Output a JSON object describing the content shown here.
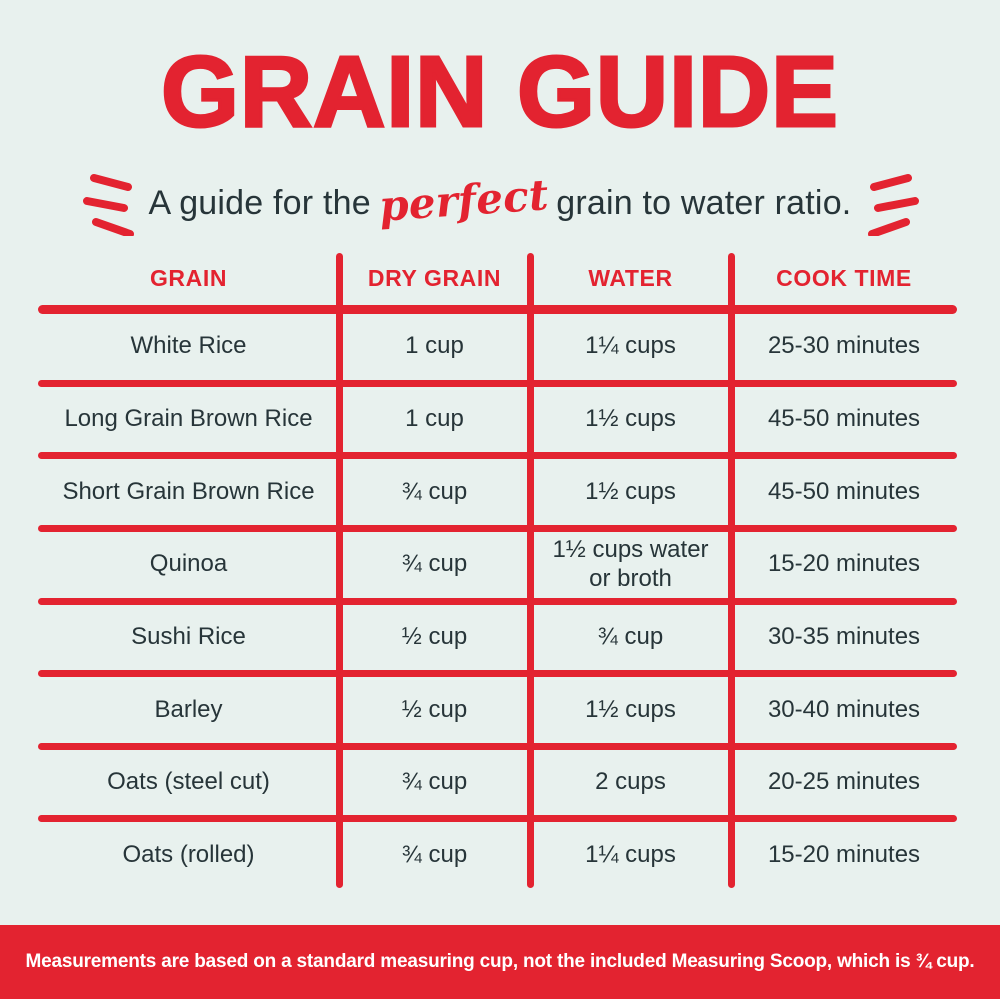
{
  "colors": {
    "background": "#E8F1EE",
    "accent_red": "#E32330",
    "dark_text": "#273539",
    "footer_background": "#E32330",
    "footer_text": "#FFFFFF"
  },
  "header": {
    "title": "GRAIN GUIDE",
    "subtitle_prefix": "A guide for the",
    "subtitle_accent": "perfect",
    "subtitle_suffix": "grain to water ratio."
  },
  "table": {
    "columns": [
      "GRAIN",
      "DRY GRAIN",
      "WATER",
      "COOK TIME"
    ],
    "rows": [
      {
        "grain": "White Rice",
        "dry_grain": "1 cup",
        "water": "1¼ cups",
        "cook_time": "25-30 minutes"
      },
      {
        "grain": "Long Grain Brown Rice",
        "dry_grain": "1 cup",
        "water": "1½ cups",
        "cook_time": "45-50 minutes"
      },
      {
        "grain": "Short Grain Brown Rice",
        "dry_grain": "¾ cup",
        "water": "1½ cups",
        "cook_time": "45-50 minutes"
      },
      {
        "grain": "Quinoa",
        "dry_grain": "¾ cup",
        "water": "1½ cups water\nor broth",
        "cook_time": "15-20 minutes"
      },
      {
        "grain": "Sushi Rice",
        "dry_grain": "½ cup",
        "water": "¾ cup",
        "cook_time": "30-35 minutes"
      },
      {
        "grain": "Barley",
        "dry_grain": "½ cup",
        "water": "1½ cups",
        "cook_time": "30-40 minutes"
      },
      {
        "grain": "Oats (steel cut)",
        "dry_grain": "¾ cup",
        "water": "2 cups",
        "cook_time": "20-25 minutes"
      },
      {
        "grain": "Oats (rolled)",
        "dry_grain": "¾ cup",
        "water": "1¼ cups",
        "cook_time": "15-20 minutes"
      }
    ]
  },
  "footer": {
    "note": "Measurements are based on a standard measuring cup, not the included Measuring Scoop, which is ¾ cup."
  }
}
